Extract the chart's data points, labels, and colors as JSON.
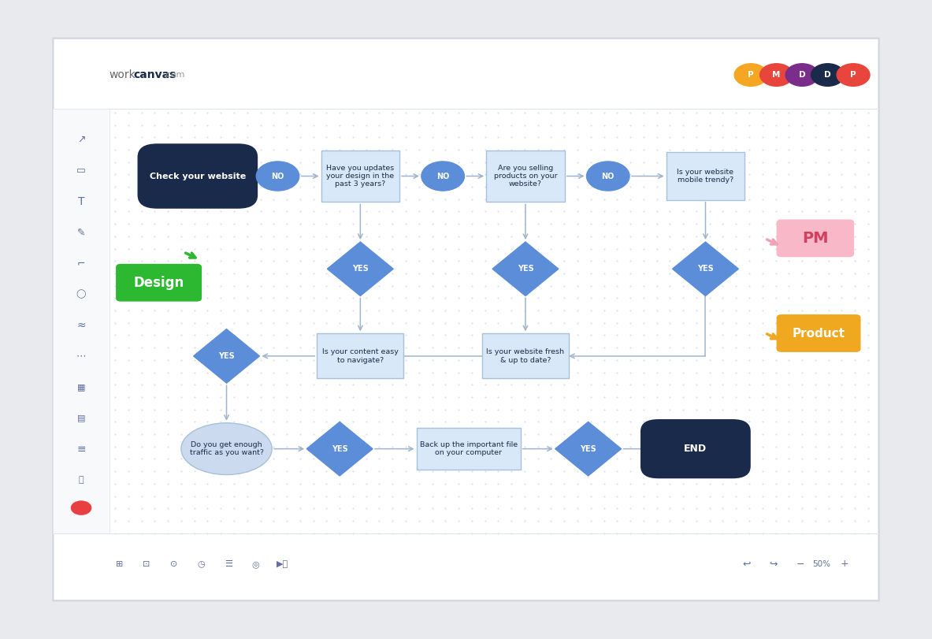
{
  "bg_outer": "#e8eaed",
  "bg_card": "#ffffff",
  "dot_color": "#c8d4e8",
  "avatar_colors": [
    "#f5a623",
    "#e8453c",
    "#7b2d8b",
    "#1a2a4a",
    "#e8453c"
  ],
  "avatar_labels": [
    "P",
    "M",
    "D",
    "D",
    "P"
  ],
  "arrow_color": "#a0b4cc",
  "node_dark": "#1a2a4a",
  "node_blue": "#5b8dd9",
  "node_light_bg": "#d8e8f8",
  "node_light_border": "#a8c0d8",
  "ellipse_bg": "#ccdaf0",
  "design_green": "#2db832",
  "pm_pink_bg": "#f8b8c8",
  "pm_pink_text": "#d04060",
  "product_orange": "#f0a820",
  "sidebar_bg": "#f8f9fb",
  "sidebar_border": "#e0e4ec"
}
